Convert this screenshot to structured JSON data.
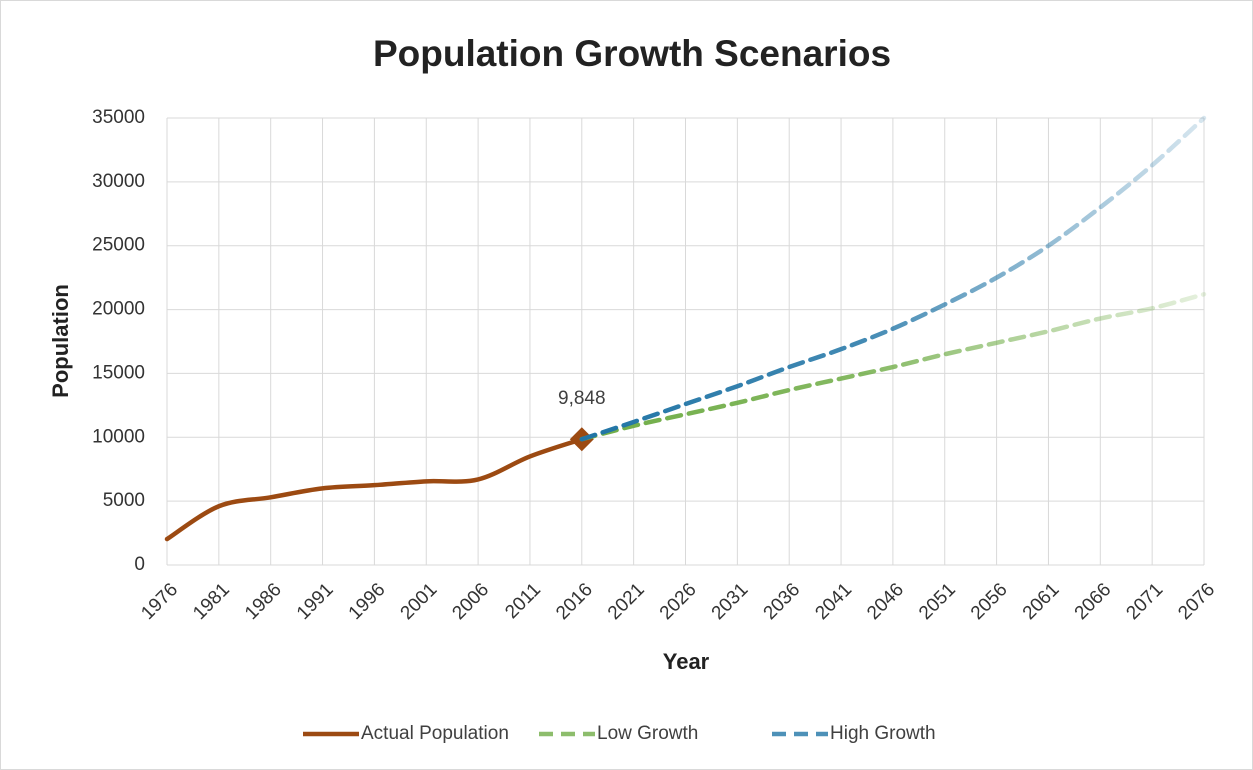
{
  "chart_data": {
    "type": "line",
    "title": "Population Growth Scenarios",
    "x_label": "Year",
    "y_label": "Population",
    "x": [
      1976,
      1981,
      1986,
      1991,
      1996,
      2001,
      2006,
      2011,
      2016,
      2021,
      2026,
      2031,
      2036,
      2041,
      2046,
      2051,
      2056,
      2061,
      2066,
      2071,
      2076
    ],
    "series": [
      {
        "name": "Actual Population",
        "color": "#9c4a12",
        "values": [
          2030,
          4600,
          5300,
          6000,
          6250,
          6550,
          6700,
          8500,
          9848,
          null,
          null,
          null,
          null,
          null,
          null,
          null,
          null,
          null,
          null,
          null,
          null
        ],
        "value_labels": [
          null,
          null,
          null,
          null,
          null,
          null,
          null,
          null,
          "9,848",
          null,
          null,
          null,
          null,
          null,
          null,
          null,
          null,
          null,
          null,
          null,
          null
        ]
      },
      {
        "name": "Low Growth",
        "color": "#70ad47",
        "values": [
          null,
          null,
          null,
          null,
          null,
          null,
          null,
          null,
          9848,
          10900,
          11800,
          12700,
          13700,
          14600,
          15500,
          16500,
          17400,
          18300,
          19300,
          20100,
          21200
        ]
      },
      {
        "name": "High Growth",
        "color": "#2175a6",
        "values": [
          null,
          null,
          null,
          null,
          null,
          null,
          null,
          null,
          9848,
          11200,
          12600,
          14000,
          15500,
          16900,
          18500,
          20400,
          22500,
          25000,
          28000,
          31300,
          35000
        ]
      }
    ],
    "xlim": [
      1976,
      2076
    ],
    "xticks": [
      1976,
      1981,
      1986,
      1991,
      1996,
      2001,
      2006,
      2011,
      2016,
      2021,
      2026,
      2031,
      2036,
      2041,
      2046,
      2051,
      2056,
      2061,
      2066,
      2071,
      2076
    ],
    "ylim": [
      0,
      35000
    ],
    "yticks": [
      0,
      5000,
      10000,
      15000,
      20000,
      25000,
      30000,
      35000
    ],
    "grid": true,
    "legend": "bottom"
  }
}
